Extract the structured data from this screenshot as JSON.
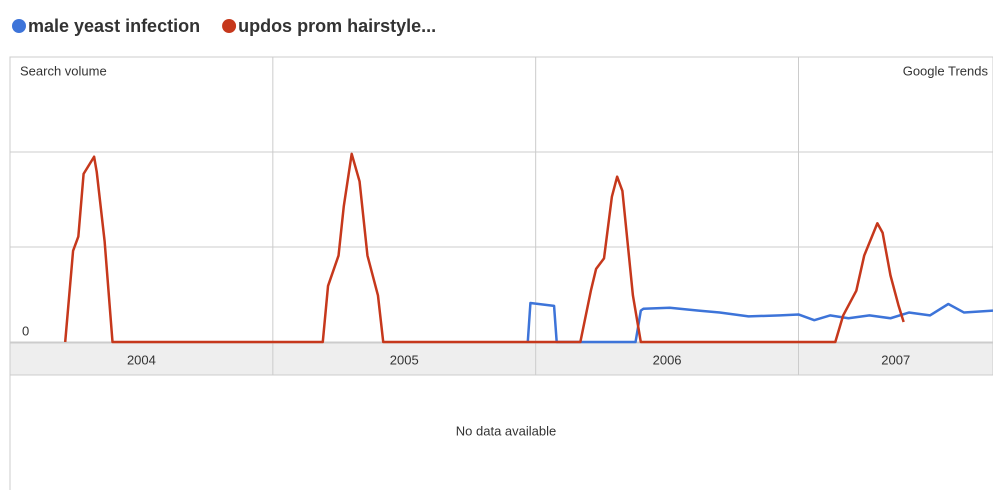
{
  "chart_data": {
    "type": "line",
    "corner_label": "Search volume",
    "brand": "Google Trends",
    "note": "No data available",
    "xlim": [
      2004,
      2007.74
    ],
    "xticks": [
      2004,
      2005,
      2006,
      2007
    ],
    "ylim": [
      0,
      3
    ],
    "yticks": [
      0
    ],
    "ygrid": [
      1,
      2,
      3
    ],
    "grid": true,
    "series": [
      {
        "name": "male yeast infection",
        "color": "#3d74d9",
        "x": [
          2005.97,
          2005.98,
          2006.07,
          2006.08,
          2006.38,
          2006.4,
          2006.41,
          2006.51,
          2006.62,
          2006.7,
          2006.81,
          2006.93,
          2007.0,
          2007.06,
          2007.12,
          2007.19,
          2007.27,
          2007.35,
          2007.42,
          2007.5,
          2007.57,
          2007.63,
          2007.74
        ],
        "values": [
          0,
          0.41,
          0.38,
          0,
          0,
          0.33,
          0.35,
          0.36,
          0.33,
          0.31,
          0.27,
          0.28,
          0.29,
          0.23,
          0.28,
          0.25,
          0.28,
          0.25,
          0.31,
          0.28,
          0.4,
          0.31,
          0.33
        ]
      },
      {
        "name": "updos prom hairstyle...",
        "color": "#c6381c",
        "x": [
          2004.21,
          2004.24,
          2004.26,
          2004.28,
          2004.32,
          2004.33,
          2004.36,
          2004.39,
          2005.19,
          2005.21,
          2005.25,
          2005.27,
          2005.3,
          2005.33,
          2005.36,
          2005.4,
          2005.42,
          2006.17,
          2006.21,
          2006.23,
          2006.26,
          2006.29,
          2006.31,
          2006.33,
          2006.37,
          2006.4,
          2007.14,
          2007.17,
          2007.22,
          2007.25,
          2007.3,
          2007.32,
          2007.35,
          2007.38,
          2007.4
        ],
        "values": [
          0,
          0.96,
          1.11,
          1.77,
          1.95,
          1.79,
          1.06,
          0,
          0,
          0.59,
          0.91,
          1.43,
          1.98,
          1.69,
          0.91,
          0.49,
          0,
          0,
          0.54,
          0.77,
          0.88,
          1.53,
          1.74,
          1.59,
          0.49,
          0,
          0,
          0.28,
          0.54,
          0.91,
          1.25,
          1.15,
          0.7,
          0.39,
          0.21
        ]
      }
    ]
  }
}
